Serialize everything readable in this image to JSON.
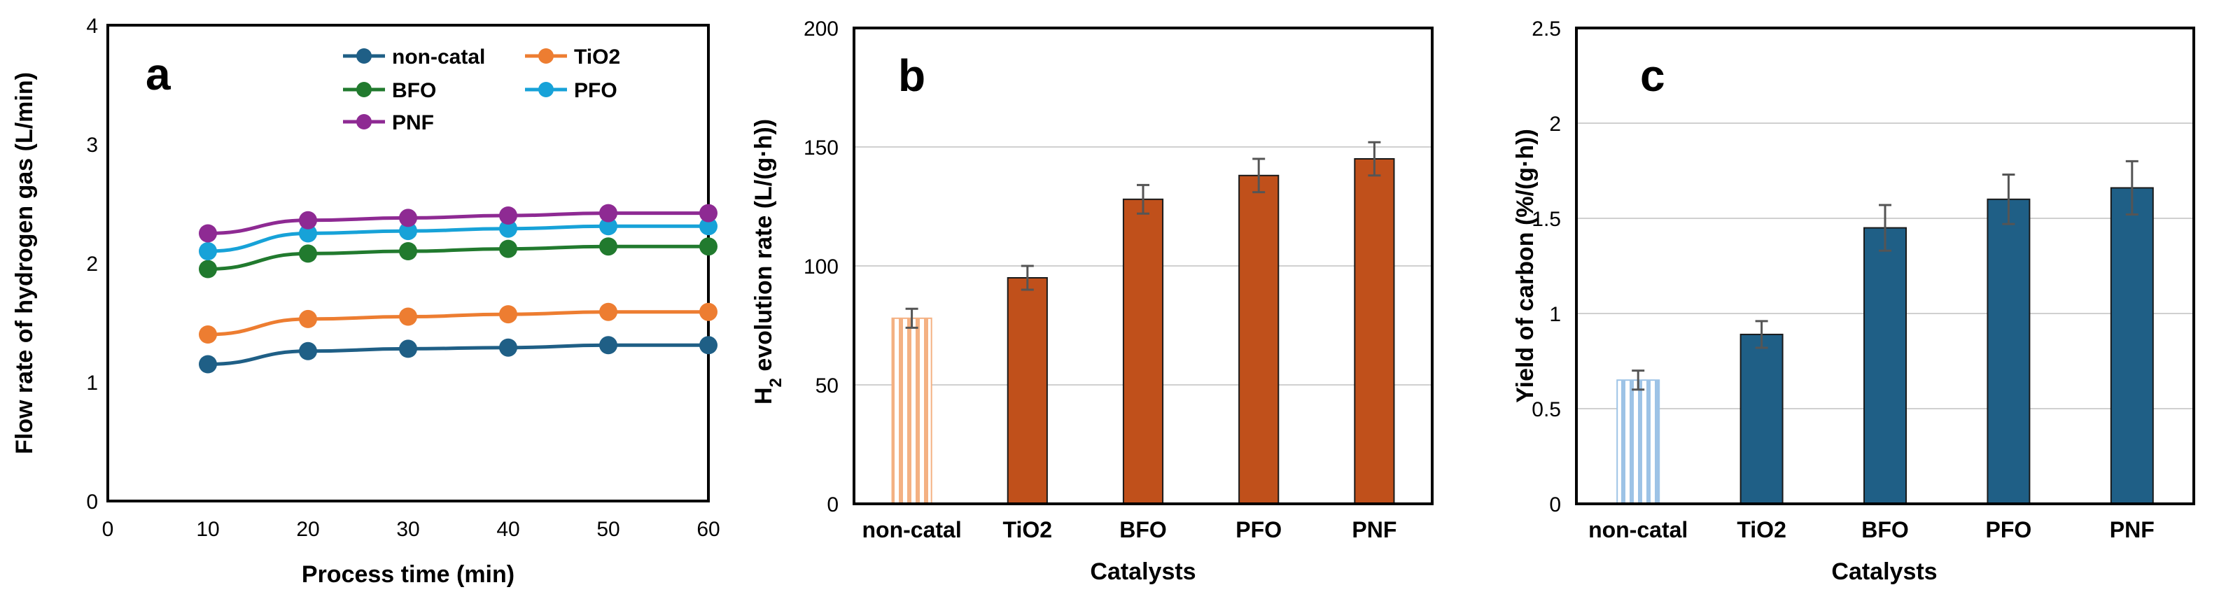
{
  "chart_data": [
    {
      "type": "line",
      "panel_letter": "a",
      "xlabel": "Process time (min)",
      "ylabel": "Flow rate of hydrogen gas (L/min)",
      "xlim": [
        0,
        60
      ],
      "ylim": [
        0,
        4
      ],
      "x_ticks": [
        "0",
        "10",
        "20",
        "30",
        "40",
        "50",
        "60"
      ],
      "y_ticks": [
        "0",
        "1",
        "2",
        "3",
        "4"
      ],
      "x": [
        10,
        20,
        30,
        40,
        50,
        60
      ],
      "legend_position": "top-right",
      "series": [
        {
          "name": "non-catal",
          "color": "#1f5f86",
          "values": [
            1.15,
            1.26,
            1.28,
            1.29,
            1.31,
            1.31
          ]
        },
        {
          "name": "TiO2",
          "color": "#ed7d31",
          "values": [
            1.4,
            1.53,
            1.55,
            1.57,
            1.59,
            1.59
          ]
        },
        {
          "name": "BFO",
          "color": "#217a2e",
          "values": [
            1.95,
            2.08,
            2.1,
            2.12,
            2.14,
            2.14
          ]
        },
        {
          "name": "PFO",
          "color": "#17a2d8",
          "values": [
            2.1,
            2.25,
            2.27,
            2.29,
            2.31,
            2.31
          ]
        },
        {
          "name": "PNF",
          "color": "#8e2a93",
          "values": [
            2.25,
            2.36,
            2.38,
            2.4,
            2.42,
            2.42
          ]
        }
      ]
    },
    {
      "type": "bar",
      "panel_letter": "b",
      "xlabel": "Catalysts",
      "ylabel_main": "H",
      "ylabel_sub": "2",
      "ylabel_rest": " evolution rate (L/(g·h))",
      "ylim": [
        0,
        200
      ],
      "y_ticks": [
        "0",
        "50",
        "100",
        "150",
        "200"
      ],
      "gridlines": true,
      "categories": [
        "non-catal",
        "TiO2",
        "BFO",
        "PFO",
        "PNF"
      ],
      "values": [
        78,
        95,
        128,
        138,
        145
      ],
      "errors": [
        4,
        5,
        6,
        7,
        7
      ],
      "bar_color": "#c0501b",
      "hatch_color": "#f4b183"
    },
    {
      "type": "bar",
      "panel_letter": "c",
      "xlabel": "Catalysts",
      "ylabel": "Yield of carbon (%/(g·h))",
      "ylim": [
        0,
        2.5
      ],
      "y_ticks": [
        "0",
        "0.5",
        "1",
        "1.5",
        "2",
        "2.5"
      ],
      "gridlines": true,
      "categories": [
        "non-catal",
        "TiO2",
        "BFO",
        "PFO",
        "PNF"
      ],
      "values": [
        0.65,
        0.89,
        1.45,
        1.6,
        1.66
      ],
      "errors": [
        0.05,
        0.07,
        0.12,
        0.13,
        0.14
      ],
      "bar_color": "#1f5f86",
      "hatch_color": "#9dc3e6"
    }
  ]
}
